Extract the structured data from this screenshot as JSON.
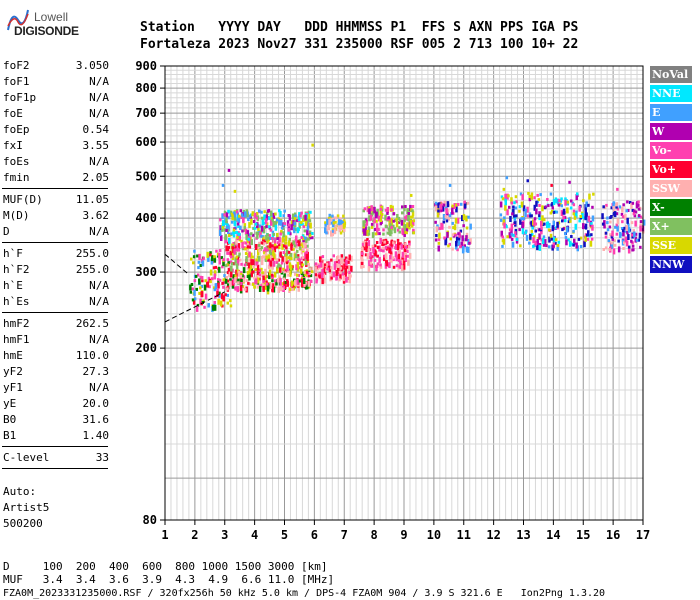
{
  "logo": {
    "line1": "Lowell",
    "line2": "DIGISONDE"
  },
  "header": {
    "line1": "Station   YYYY DAY   DDD HHMMSS P1  FFS S AXN PPS IGA PS",
    "line2": "Fortaleza 2023 Nov27 331 235000 RSF 005 2 713 100 10+ 22"
  },
  "params": [
    {
      "group": [
        {
          "name": "foF2",
          "value": "3.050"
        },
        {
          "name": "foF1",
          "value": "N/A"
        },
        {
          "name": "foF1p",
          "value": "N/A"
        },
        {
          "name": "foE",
          "value": "N/A"
        },
        {
          "name": "foEp",
          "value": "0.54"
        },
        {
          "name": "fxI",
          "value": "3.55"
        },
        {
          "name": "foEs",
          "value": "N/A"
        },
        {
          "name": "fmin",
          "value": "2.05"
        }
      ]
    },
    {
      "group": [
        {
          "name": "MUF(D)",
          "value": "11.05"
        },
        {
          "name": "M(D)",
          "value": "3.62"
        },
        {
          "name": "D",
          "value": "N/A"
        }
      ]
    },
    {
      "group": [
        {
          "name": "h`F",
          "value": "255.0"
        },
        {
          "name": "h`F2",
          "value": "255.0"
        },
        {
          "name": "h`E",
          "value": "N/A"
        },
        {
          "name": "h`Es",
          "value": "N/A"
        }
      ]
    },
    {
      "group": [
        {
          "name": "hmF2",
          "value": "262.5"
        },
        {
          "name": "hmF1",
          "value": "N/A"
        },
        {
          "name": "hmE",
          "value": "110.0"
        },
        {
          "name": "yF2",
          "value": "27.3"
        },
        {
          "name": "yF1",
          "value": "N/A"
        },
        {
          "name": "yE",
          "value": "20.0"
        },
        {
          "name": "B0",
          "value": "31.6"
        },
        {
          "name": "B1",
          "value": "1.40"
        }
      ]
    },
    {
      "group": [
        {
          "name": "C-level",
          "value": "33"
        }
      ]
    }
  ],
  "autoscaling": {
    "line1": "Auto:",
    "line2": "Artist5",
    "line3": "500200"
  },
  "legend": [
    {
      "label": "NoVal",
      "color": "#808080"
    },
    {
      "label": "NNE",
      "color": "#00e8ff"
    },
    {
      "label": "E",
      "color": "#40a0ff"
    },
    {
      "label": "W",
      "color": "#b000b0"
    },
    {
      "label": "Vo-",
      "color": "#ff40b0"
    },
    {
      "label": "Vo+",
      "color": "#ff0030"
    },
    {
      "label": "SSW",
      "color": "#ffb0b0"
    },
    {
      "label": "X-",
      "color": "#008000"
    },
    {
      "label": "X+",
      "color": "#80c060"
    },
    {
      "label": "SSE",
      "color": "#d8d800"
    },
    {
      "label": "NNW",
      "color": "#1010c0"
    }
  ],
  "footer": {
    "d_row": "D     100  200  400  600  800 1000 1500 3000 [km]",
    "muf_row": "MUF   3.4  3.4  3.6  3.9  4.3  4.9  6.6 11.0 [MHz]",
    "info": "FZA0M_2023331235000.RSF / 320fx256h 50 kHz 5.0 km / DPS-4 FZA0M 904 / 3.9 S 321.6 E   Ion2Png 1.3.20"
  },
  "chart_data": {
    "type": "scatter",
    "x_ticks": [
      "1",
      "2",
      "3",
      "4",
      "5",
      "6",
      "7",
      "8",
      "9",
      "10",
      "11",
      "12",
      "13",
      "14",
      "15",
      "16",
      "17"
    ],
    "y_ticks": [
      "80",
      "200",
      "300",
      "400",
      "500",
      "600",
      "700",
      "800",
      "900"
    ],
    "xlim": [
      1,
      17
    ],
    "ylim": [
      80,
      900
    ],
    "y_scale": "log",
    "grid": true,
    "legend_position": "right",
    "clusters": [
      {
        "x": [
          1.8,
          3.2
        ],
        "y": [
          250,
          340
        ],
        "colors": [
          "#ff0030",
          "#008000",
          "#d8d800",
          "#ff40b0",
          "#40a0ff"
        ]
      },
      {
        "x": [
          3.0,
          5.9
        ],
        "y": [
          275,
          310
        ],
        "colors": [
          "#ff0030",
          "#ff40b0",
          "#008000",
          "#d8d800",
          "#ffb0b0"
        ]
      },
      {
        "x": [
          3.0,
          5.8
        ],
        "y": [
          310,
          360
        ],
        "colors": [
          "#ffb0b0",
          "#ff40b0",
          "#d8d800",
          "#80c060",
          "#ff0030"
        ]
      },
      {
        "x": [
          2.8,
          5.9
        ],
        "y": [
          360,
          420
        ],
        "colors": [
          "#40a0ff",
          "#00e8ff",
          "#d8d800",
          "#80c060",
          "#ff40b0",
          "#b000b0"
        ]
      },
      {
        "x": [
          6.0,
          7.2
        ],
        "y": [
          290,
          330
        ],
        "colors": [
          "#ff0030",
          "#ff40b0",
          "#ffb0b0"
        ]
      },
      {
        "x": [
          6.3,
          7.0
        ],
        "y": [
          370,
          410
        ],
        "colors": [
          "#d8d800",
          "#ffb0b0",
          "#40a0ff"
        ]
      },
      {
        "x": [
          7.5,
          9.2
        ],
        "y": [
          310,
          360
        ],
        "colors": [
          "#ff0030",
          "#ff40b0",
          "#ffb0b0"
        ]
      },
      {
        "x": [
          7.6,
          9.3
        ],
        "y": [
          370,
          430
        ],
        "colors": [
          "#d8d800",
          "#80c060",
          "#b000b0",
          "#ff40b0"
        ]
      },
      {
        "x": [
          10.0,
          11.2
        ],
        "y": [
          340,
          440
        ],
        "colors": [
          "#1010c0",
          "#b000b0",
          "#d8d800",
          "#ffb0b0",
          "#ff40b0",
          "#40a0ff"
        ]
      },
      {
        "x": [
          12.2,
          15.3
        ],
        "y": [
          345,
          460
        ],
        "colors": [
          "#40a0ff",
          "#1010c0",
          "#b000b0",
          "#ff40b0",
          "#00e8ff",
          "#d8d800"
        ]
      },
      {
        "x": [
          15.6,
          17.0
        ],
        "y": [
          340,
          440
        ],
        "colors": [
          "#40a0ff",
          "#b000b0",
          "#1010c0",
          "#ff40b0",
          "#ffb0b0"
        ]
      }
    ]
  }
}
